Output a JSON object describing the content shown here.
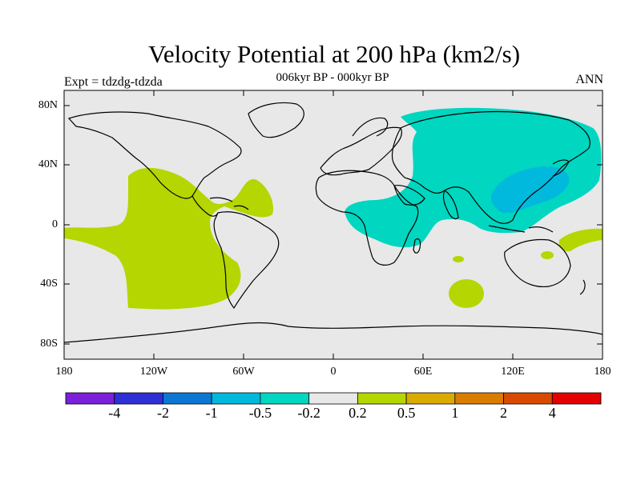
{
  "title": "Velocity Potential at 200 hPa (km2/s)",
  "subtitle": "006kyr BP - 000kyr BP",
  "left_label": "Expt = tdzdg-tdzda",
  "right_label": "ANN",
  "lat_labels": [
    "80N",
    "40N",
    "0",
    "40S",
    "80S"
  ],
  "lon_labels": [
    "180",
    "120W",
    "60W",
    "0",
    "60E",
    "120E",
    "180"
  ],
  "colorbar": {
    "colors": [
      "#7b1fd9",
      "#2f2fd6",
      "#0a78d2",
      "#00b9dd",
      "#00d6c0",
      "#e8e8e8",
      "#b5d600",
      "#d9ab00",
      "#d97c00",
      "#d94a00",
      "#e50000"
    ],
    "labels": [
      "-4",
      "-2",
      "-1",
      "-0.5",
      "-0.2",
      "0.2",
      "0.5",
      "1",
      "2",
      "4"
    ]
  }
}
